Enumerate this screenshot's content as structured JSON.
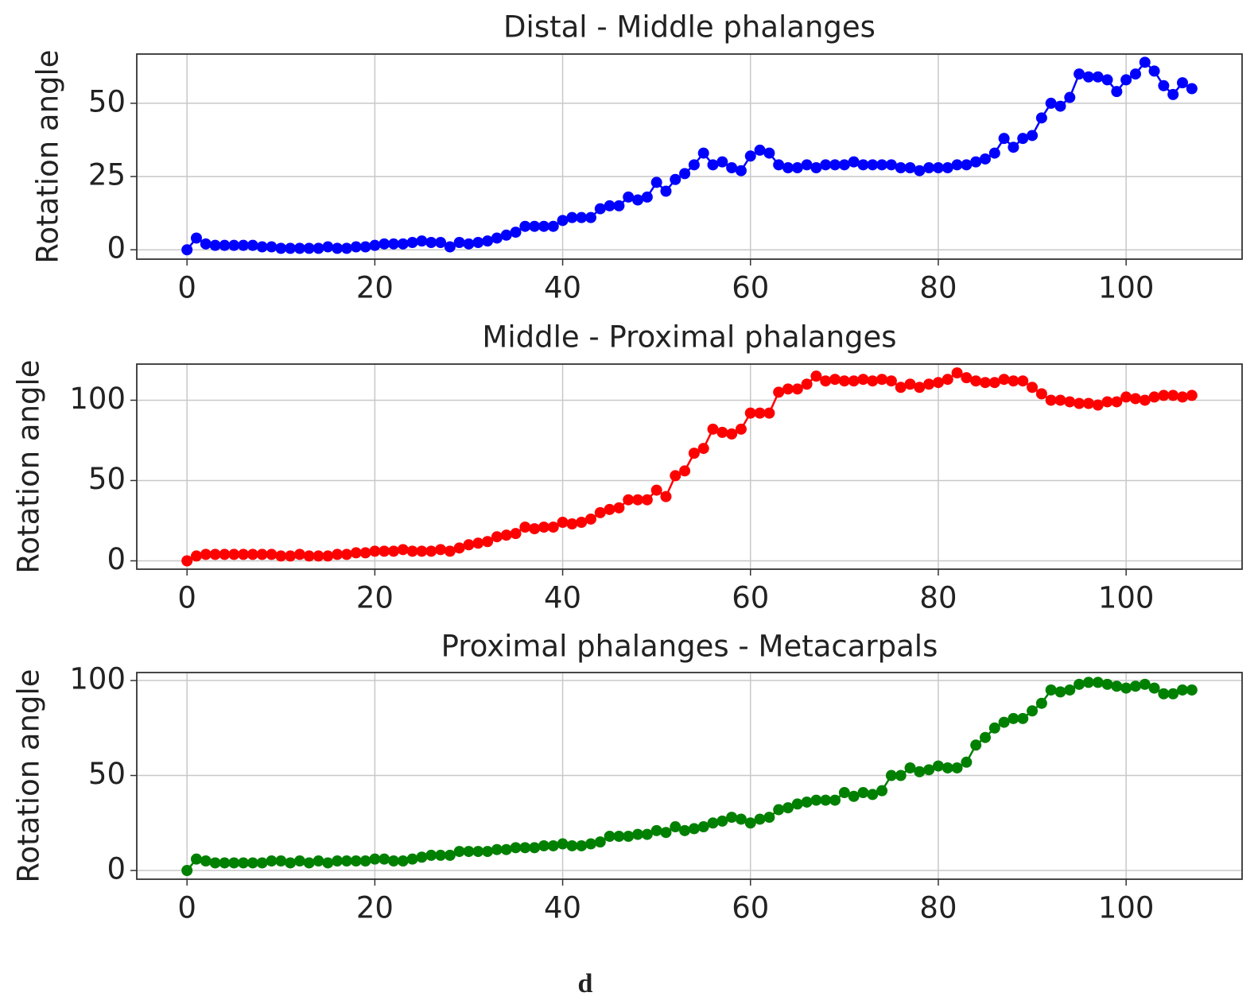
{
  "caption": "d",
  "chart_data": [
    {
      "type": "line",
      "title": "Distal - Middle phalanges",
      "ylabel": "Rotation angle",
      "color": "#0000ff",
      "marker": "circle",
      "grid": true,
      "x": [
        0,
        1,
        2,
        3,
        4,
        5,
        6,
        7,
        8,
        9,
        10,
        11,
        12,
        13,
        14,
        15,
        16,
        17,
        18,
        19,
        20,
        21,
        22,
        23,
        24,
        25,
        26,
        27,
        28,
        29,
        30,
        31,
        32,
        33,
        34,
        35,
        36,
        37,
        38,
        39,
        40,
        41,
        42,
        43,
        44,
        45,
        46,
        47,
        48,
        49,
        50,
        51,
        52,
        53,
        54,
        55,
        56,
        57,
        58,
        59,
        60,
        61,
        62,
        63,
        64,
        65,
        66,
        67,
        68,
        69,
        70,
        71,
        72,
        73,
        74,
        75,
        76,
        77,
        78,
        79,
        80,
        81,
        82,
        83,
        84,
        85,
        86,
        87,
        88,
        89,
        90,
        91,
        92,
        93,
        94,
        95,
        96,
        97,
        98,
        99,
        100,
        101,
        102,
        103,
        104,
        105,
        106,
        107
      ],
      "values": [
        0,
        4,
        2,
        1.5,
        1.5,
        1.5,
        1.5,
        1.5,
        1,
        1,
        0.5,
        0.5,
        0.5,
        0.5,
        0.5,
        1,
        0.5,
        0.5,
        1,
        1,
        1.5,
        2,
        2,
        2,
        2.5,
        3,
        2.5,
        2.5,
        1,
        2.5,
        2,
        2.5,
        3,
        4,
        5,
        6,
        8,
        8,
        8,
        8,
        10,
        11,
        11,
        11,
        14,
        15,
        15,
        18,
        17,
        18,
        23,
        20,
        24,
        26,
        29,
        33,
        29,
        30,
        28,
        27,
        32,
        34,
        33,
        29,
        28,
        28,
        29,
        28,
        29,
        29,
        29,
        30,
        29,
        29,
        29,
        29,
        28,
        28,
        27,
        28,
        28,
        28,
        29,
        29,
        30,
        31,
        33,
        38,
        35,
        38,
        39,
        45,
        50,
        49,
        52,
        60,
        59,
        59,
        58,
        54,
        58,
        60,
        64,
        61,
        56,
        53,
        57,
        55
      ],
      "xlim": [
        -5.35,
        112.35
      ],
      "ylim": [
        -3.2,
        66.8
      ],
      "xticks": [
        0,
        20,
        40,
        60,
        80,
        100
      ],
      "yticks": [
        0,
        25,
        50
      ]
    },
    {
      "type": "line",
      "title": "Middle - Proximal phalanges",
      "ylabel": "Rotation angle",
      "color": "#ff0000",
      "marker": "circle",
      "grid": true,
      "x": [
        0,
        1,
        2,
        3,
        4,
        5,
        6,
        7,
        8,
        9,
        10,
        11,
        12,
        13,
        14,
        15,
        16,
        17,
        18,
        19,
        20,
        21,
        22,
        23,
        24,
        25,
        26,
        27,
        28,
        29,
        30,
        31,
        32,
        33,
        34,
        35,
        36,
        37,
        38,
        39,
        40,
        41,
        42,
        43,
        44,
        45,
        46,
        47,
        48,
        49,
        50,
        51,
        52,
        53,
        54,
        55,
        56,
        57,
        58,
        59,
        60,
        61,
        62,
        63,
        64,
        65,
        66,
        67,
        68,
        69,
        70,
        71,
        72,
        73,
        74,
        75,
        76,
        77,
        78,
        79,
        80,
        81,
        82,
        83,
        84,
        85,
        86,
        87,
        88,
        89,
        90,
        91,
        92,
        93,
        94,
        95,
        96,
        97,
        98,
        99,
        100,
        101,
        102,
        103,
        104,
        105,
        106,
        107
      ],
      "values": [
        0,
        3,
        4,
        4,
        4,
        4,
        4,
        4,
        4,
        4,
        3,
        3,
        4,
        3,
        3,
        3,
        4,
        4,
        5,
        5,
        6,
        6,
        6,
        7,
        6,
        6,
        6,
        7,
        6,
        8,
        10,
        11,
        12,
        15,
        16,
        17,
        21,
        20,
        21,
        21,
        24,
        23,
        24,
        26,
        30,
        32,
        33,
        38,
        38,
        38,
        44,
        40,
        53,
        56,
        67,
        70,
        82,
        80,
        79,
        82,
        92,
        92,
        92,
        105,
        107,
        107,
        110,
        115,
        112,
        113,
        112,
        112,
        113,
        112,
        113,
        112,
        108,
        110,
        108,
        110,
        111,
        113,
        117,
        114,
        112,
        111,
        111,
        113,
        112,
        112,
        108,
        104,
        100,
        100,
        99,
        98,
        98,
        97,
        99,
        99,
        102,
        101,
        100,
        102,
        103,
        103,
        102,
        103
      ],
      "xlim": [
        -5.35,
        112.35
      ],
      "ylim": [
        -5.2,
        122.5
      ],
      "xticks": [
        0,
        20,
        40,
        60,
        80,
        100
      ],
      "yticks": [
        0,
        50,
        100
      ]
    },
    {
      "type": "line",
      "title": "Proximal phalanges - Metacarpals",
      "ylabel": "Rotation angle",
      "color": "#008000",
      "marker": "circle",
      "grid": true,
      "x": [
        0,
        1,
        2,
        3,
        4,
        5,
        6,
        7,
        8,
        9,
        10,
        11,
        12,
        13,
        14,
        15,
        16,
        17,
        18,
        19,
        20,
        21,
        22,
        23,
        24,
        25,
        26,
        27,
        28,
        29,
        30,
        31,
        32,
        33,
        34,
        35,
        36,
        37,
        38,
        39,
        40,
        41,
        42,
        43,
        44,
        45,
        46,
        47,
        48,
        49,
        50,
        51,
        52,
        53,
        54,
        55,
        56,
        57,
        58,
        59,
        60,
        61,
        62,
        63,
        64,
        65,
        66,
        67,
        68,
        69,
        70,
        71,
        72,
        73,
        74,
        75,
        76,
        77,
        78,
        79,
        80,
        81,
        82,
        83,
        84,
        85,
        86,
        87,
        88,
        89,
        90,
        91,
        92,
        93,
        94,
        95,
        96,
        97,
        98,
        99,
        100,
        101,
        102,
        103,
        104,
        105,
        106,
        107
      ],
      "values": [
        0,
        6,
        5,
        4,
        4,
        4,
        4,
        4,
        4,
        5,
        5,
        4,
        5,
        4,
        5,
        4,
        5,
        5,
        5,
        5,
        6,
        6,
        5,
        5,
        6,
        7,
        8,
        8,
        8,
        10,
        10,
        10,
        10,
        11,
        11,
        12,
        12,
        12,
        13,
        13,
        14,
        13,
        13,
        14,
        15,
        18,
        18,
        18,
        19,
        19,
        21,
        20,
        23,
        21,
        22,
        23,
        25,
        26,
        28,
        27,
        25,
        27,
        28,
        32,
        33,
        35,
        36,
        37,
        37,
        37,
        41,
        39,
        41,
        40,
        42,
        50,
        50,
        54,
        52,
        53,
        55,
        54,
        54,
        57,
        66,
        70,
        75,
        78,
        80,
        80,
        84,
        88,
        95,
        94,
        95,
        98,
        99,
        99,
        98,
        97,
        96,
        97,
        98,
        96,
        93,
        93,
        95,
        95
      ],
      "xlim": [
        -5.35,
        112.35
      ],
      "ylim": [
        -4.6,
        104.2
      ],
      "xticks": [
        0,
        20,
        40,
        60,
        80,
        100
      ],
      "yticks": [
        0,
        50,
        100
      ]
    }
  ]
}
